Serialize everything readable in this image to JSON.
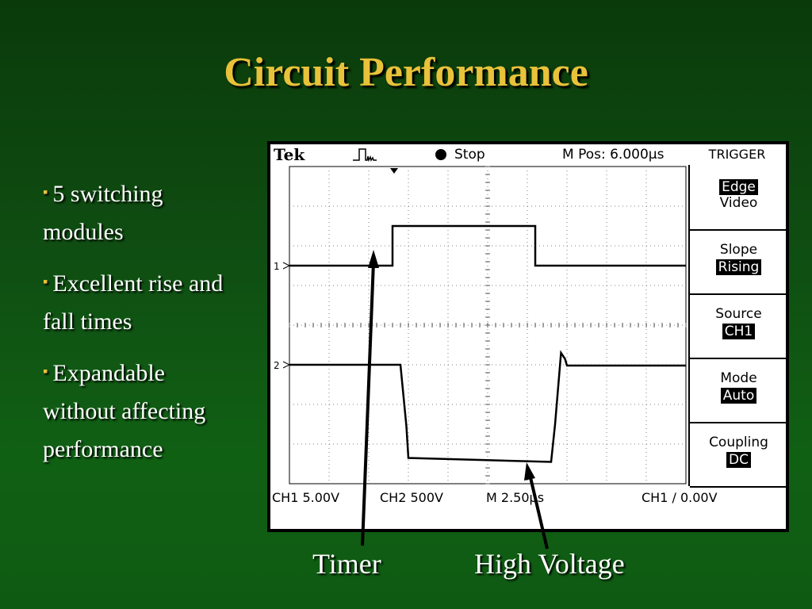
{
  "slide": {
    "title": "Circuit Performance",
    "bullets": [
      {
        "lines": [
          "5 switching",
          "modules"
        ]
      },
      {
        "lines": [
          "Excellent rise and",
          "fall times"
        ]
      },
      {
        "lines": [
          "Expandable",
          "without affecting",
          "performance"
        ]
      }
    ],
    "bullet_marker": "▪",
    "captions": {
      "timer": "Timer",
      "high_voltage": "High Voltage"
    }
  },
  "scope": {
    "brand": "Tek",
    "status": "Stop",
    "m_pos": "M Pos: 6.000µs",
    "trigger_title": "TRIGGER",
    "menu": [
      {
        "label": "Edge",
        "value": "Video",
        "label_inverted": true
      },
      {
        "label": "Slope",
        "value": "Rising",
        "value_inverted": true
      },
      {
        "label": "Source",
        "value": "CH1",
        "value_inverted": true
      },
      {
        "label": "Mode",
        "value": "Auto",
        "value_inverted": true
      },
      {
        "label": "Coupling",
        "value": "DC",
        "value_inverted": true
      }
    ],
    "footer": {
      "ch1": "CH1   5.00V",
      "ch2": "CH2   500V",
      "timebase": "M 2.50µs",
      "trigger": "CH1  ∕  0.00V"
    },
    "channel_markers": [
      "1",
      "2"
    ]
  },
  "chart_data": {
    "type": "line",
    "title": "",
    "xlabel": "",
    "ylabel": "",
    "grid": true,
    "x_divisions": 10,
    "y_divisions": 8,
    "series": [
      {
        "name": "CH1",
        "points": [
          [
            0,
            2.5
          ],
          [
            2.6,
            2.5
          ],
          [
            2.6,
            1.5
          ],
          [
            6.2,
            1.5
          ],
          [
            6.2,
            2.5
          ],
          [
            10,
            2.5
          ]
        ]
      },
      {
        "name": "CH2",
        "points": [
          [
            0,
            5.0
          ],
          [
            2.8,
            5.0
          ],
          [
            2.95,
            6.55
          ],
          [
            3.0,
            7.35
          ],
          [
            6.6,
            7.45
          ],
          [
            6.7,
            6.5
          ],
          [
            6.85,
            4.7
          ],
          [
            6.95,
            4.85
          ],
          [
            7.0,
            5.02
          ],
          [
            10,
            5.02
          ]
        ]
      }
    ],
    "colors": {
      "trace": "#000000",
      "grid": "#808080"
    }
  }
}
